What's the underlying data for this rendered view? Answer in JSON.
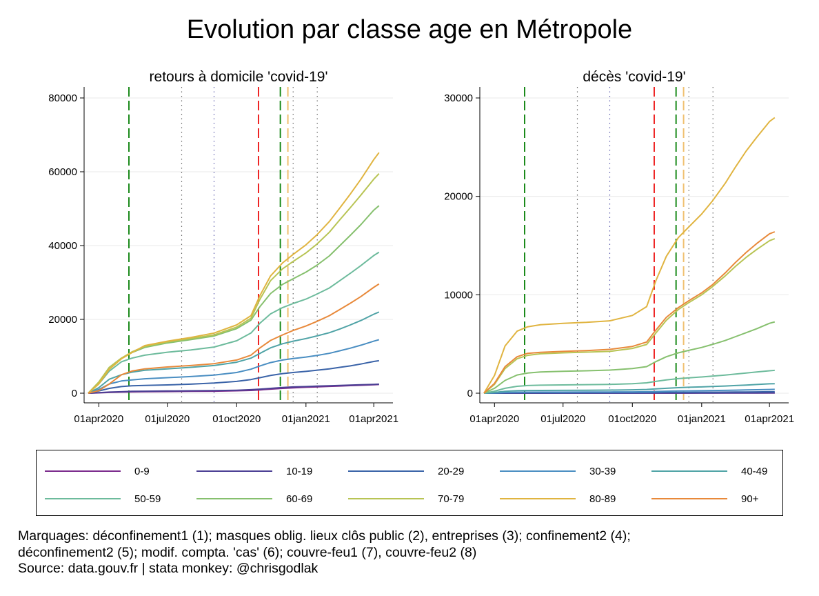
{
  "title": "Evolution par classe age en Métropole",
  "notes": [
    "Marquages: déconfinement1 (1); masques oblig. lieux clôs public (2), entreprises (3); confinement2 (4);",
    "déconfinement2 (5); modif. compta. 'cas' (6); couvre-feu1 (7), couvre-feu2 (8)",
    "Source: data.gouv.fr | stata monkey: @chrisgodlak"
  ],
  "colors": {
    "0-9": "#7b2a8c",
    "10-19": "#4b3f94",
    "20-29": "#3a63a8",
    "30-39": "#4a8ec2",
    "40-49": "#4fa3a6",
    "50-59": "#6dbb9c",
    "60-69": "#86c06e",
    "70-79": "#b8c454",
    "80-89": "#e0b440",
    "90+": "#e8893a"
  },
  "legend": [
    "0-9",
    "10-19",
    "20-29",
    "30-39",
    "40-49",
    "50-59",
    "60-69",
    "70-79",
    "80-89",
    "90+"
  ],
  "chart_data": [
    {
      "type": "line",
      "title": "retours à domicile 'covid-19'",
      "x_ticks": [
        "01apr2020",
        "01jul2020",
        "01oct2020",
        "01jan2021",
        "01apr2021"
      ],
      "y_ticks": [
        0,
        20000,
        40000,
        60000,
        80000
      ],
      "xlim": [
        "2020-03-18",
        "2021-04-10"
      ],
      "ylim": [
        0,
        80000
      ],
      "grid": true,
      "markers": [
        {
          "date": "2020-05-11",
          "color": "#1a8a1a",
          "style": "dashed"
        },
        {
          "date": "2020-07-20",
          "color": "#666666",
          "style": "dotted"
        },
        {
          "date": "2020-09-01",
          "color": "#5555aa",
          "style": "dotted"
        },
        {
          "date": "2020-10-30",
          "color": "#ee2222",
          "style": "dashed"
        },
        {
          "date": "2020-11-28",
          "color": "#1a8a1a",
          "style": "dashed"
        },
        {
          "date": "2020-12-08",
          "color": "#f0c070",
          "style": "dashed"
        },
        {
          "date": "2020-12-15",
          "color": "#666666",
          "style": "dotted"
        },
        {
          "date": "2021-01-16",
          "color": "#666666",
          "style": "dotted"
        }
      ],
      "x": [
        "2020-03-18",
        "2020-04-01",
        "2020-04-15",
        "2020-05-01",
        "2020-05-15",
        "2020-06-01",
        "2020-07-01",
        "2020-08-01",
        "2020-09-01",
        "2020-10-01",
        "2020-10-20",
        "2020-11-01",
        "2020-11-15",
        "2020-12-01",
        "2020-12-15",
        "2021-01-01",
        "2021-01-15",
        "2021-02-01",
        "2021-02-15",
        "2021-03-01",
        "2021-03-15",
        "2021-04-01",
        "2021-04-08"
      ],
      "series": [
        {
          "name": "0-9",
          "values": [
            0,
            100,
            200,
            300,
            350,
            400,
            450,
            500,
            550,
            650,
            750,
            900,
            1100,
            1300,
            1450,
            1600,
            1700,
            1850,
            1950,
            2050,
            2150,
            2300,
            2350
          ]
        },
        {
          "name": "10-19",
          "values": [
            0,
            150,
            300,
            400,
            500,
            550,
            600,
            650,
            700,
            800,
            950,
            1100,
            1300,
            1550,
            1700,
            1800,
            1900,
            2000,
            2100,
            2200,
            2300,
            2400,
            2450
          ]
        },
        {
          "name": "20-29",
          "values": [
            0,
            600,
            1300,
            1800,
            2000,
            2100,
            2250,
            2450,
            2750,
            3200,
            3700,
            4200,
            4800,
            5300,
            5600,
            5900,
            6200,
            6600,
            7000,
            7400,
            7900,
            8600,
            8800
          ]
        },
        {
          "name": "30-39",
          "values": [
            0,
            1000,
            2500,
            3300,
            3600,
            3900,
            4200,
            4500,
            4900,
            5600,
            6500,
            7400,
            8300,
            9000,
            9400,
            9800,
            10200,
            10800,
            11500,
            12200,
            13000,
            14100,
            14500
          ]
        },
        {
          "name": "40-49",
          "values": [
            0,
            1500,
            3800,
            5000,
            5700,
            6200,
            6600,
            7000,
            7500,
            8400,
            9500,
            10800,
            12300,
            13400,
            14100,
            14800,
            15500,
            16400,
            17400,
            18500,
            19700,
            21400,
            22000
          ]
        },
        {
          "name": "50-59",
          "values": [
            0,
            2500,
            6000,
            8500,
            9500,
            10300,
            11100,
            11700,
            12500,
            14200,
            16300,
            19000,
            21500,
            23200,
            24300,
            25500,
            26800,
            28500,
            30500,
            32500,
            34600,
            37300,
            38200
          ]
        },
        {
          "name": "60-69",
          "values": [
            0,
            3000,
            7000,
            9500,
            11000,
            12400,
            13600,
            14500,
            15500,
            17500,
            19800,
            23500,
            27000,
            29500,
            31000,
            32800,
            34600,
            37200,
            40000,
            42800,
            45700,
            49600,
            50800
          ]
        },
        {
          "name": "70-79",
          "values": [
            0,
            3000,
            7000,
            9500,
            11200,
            12700,
            13900,
            14800,
            15800,
            17900,
            20300,
            25500,
            30500,
            33700,
            35700,
            38000,
            40300,
            43600,
            47000,
            50300,
            53700,
            58000,
            59500
          ]
        },
        {
          "name": "80-89",
          "values": [
            0,
            2500,
            6500,
            9300,
            11000,
            12900,
            14100,
            15100,
            16300,
            18500,
            21000,
            26500,
            31800,
            35300,
            37600,
            40200,
            42800,
            46500,
            50200,
            54000,
            58000,
            63300,
            65200
          ]
        },
        {
          "name": "90+",
          "values": [
            0,
            700,
            2500,
            5000,
            6000,
            6600,
            7100,
            7500,
            8000,
            9000,
            10300,
            12300,
            14300,
            15800,
            17000,
            18200,
            19400,
            21000,
            22700,
            24400,
            26200,
            28700,
            29600
          ]
        }
      ]
    },
    {
      "type": "line",
      "title": "décès 'covid-19'",
      "x_ticks": [
        "01apr2020",
        "01jul2020",
        "01oct2020",
        "01jan2021",
        "01apr2021"
      ],
      "y_ticks": [
        0,
        10000,
        20000,
        30000
      ],
      "xlim": [
        "2020-03-18",
        "2021-04-10"
      ],
      "ylim": [
        0,
        30000
      ],
      "grid": true,
      "markers": [
        {
          "date": "2020-05-11",
          "color": "#1a8a1a",
          "style": "dashed"
        },
        {
          "date": "2020-07-20",
          "color": "#666666",
          "style": "dotted"
        },
        {
          "date": "2020-09-01",
          "color": "#5555aa",
          "style": "dotted"
        },
        {
          "date": "2020-10-30",
          "color": "#ee2222",
          "style": "dashed"
        },
        {
          "date": "2020-11-28",
          "color": "#1a8a1a",
          "style": "dashed"
        },
        {
          "date": "2020-12-08",
          "color": "#f0c070",
          "style": "dashed"
        },
        {
          "date": "2020-12-15",
          "color": "#666666",
          "style": "dotted"
        },
        {
          "date": "2021-01-16",
          "color": "#666666",
          "style": "dotted"
        }
      ],
      "x": [
        "2020-03-18",
        "2020-04-01",
        "2020-04-15",
        "2020-05-01",
        "2020-05-15",
        "2020-06-01",
        "2020-07-01",
        "2020-08-01",
        "2020-09-01",
        "2020-10-01",
        "2020-10-20",
        "2020-11-01",
        "2020-11-15",
        "2020-12-01",
        "2020-12-15",
        "2021-01-01",
        "2021-01-15",
        "2021-02-01",
        "2021-02-15",
        "2021-03-01",
        "2021-03-15",
        "2021-04-01",
        "2021-04-08"
      ],
      "series": [
        {
          "name": "0-9",
          "values": [
            0,
            1,
            2,
            3,
            3,
            3,
            4,
            4,
            4,
            5,
            6,
            7,
            8,
            9,
            10,
            11,
            12,
            13,
            14,
            15,
            16,
            17,
            18
          ]
        },
        {
          "name": "10-19",
          "values": [
            0,
            2,
            4,
            6,
            7,
            7,
            8,
            8,
            9,
            10,
            11,
            13,
            15,
            17,
            19,
            21,
            23,
            25,
            27,
            29,
            31,
            33,
            34
          ]
        },
        {
          "name": "20-29",
          "values": [
            0,
            10,
            25,
            35,
            40,
            42,
            44,
            46,
            48,
            52,
            58,
            66,
            75,
            84,
            90,
            96,
            102,
            110,
            118,
            126,
            134,
            145,
            148
          ]
        },
        {
          "name": "30-39",
          "values": [
            0,
            30,
            70,
            95,
            105,
            110,
            115,
            120,
            125,
            135,
            150,
            175,
            200,
            225,
            240,
            255,
            270,
            290,
            310,
            330,
            350,
            380,
            390
          ]
        },
        {
          "name": "40-49",
          "values": [
            0,
            80,
            190,
            250,
            270,
            280,
            290,
            300,
            315,
            340,
            380,
            440,
            500,
            560,
            600,
            640,
            680,
            730,
            780,
            830,
            880,
            950,
            970
          ]
        },
        {
          "name": "50-59",
          "values": [
            0,
            200,
            500,
            700,
            780,
            810,
            840,
            870,
            900,
            960,
            1050,
            1200,
            1350,
            1480,
            1560,
            1650,
            1730,
            1840,
            1950,
            2050,
            2150,
            2280,
            2320
          ]
        },
        {
          "name": "60-69",
          "values": [
            0,
            500,
            1300,
            1850,
            2050,
            2150,
            2220,
            2280,
            2350,
            2500,
            2700,
            3200,
            3700,
            4100,
            4350,
            4650,
            4950,
            5350,
            5750,
            6150,
            6550,
            7100,
            7250
          ]
        },
        {
          "name": "70-79",
          "values": [
            0,
            900,
            2500,
            3500,
            3850,
            4000,
            4100,
            4170,
            4250,
            4550,
            4950,
            6100,
            7400,
            8500,
            9200,
            10000,
            10800,
            11900,
            12900,
            13800,
            14600,
            15500,
            15700
          ]
        },
        {
          "name": "80-89",
          "values": [
            0,
            1800,
            4800,
            6300,
            6750,
            6950,
            7100,
            7200,
            7350,
            7900,
            8800,
            11400,
            13900,
            15800,
            16900,
            18200,
            19500,
            21300,
            23000,
            24600,
            26000,
            27600,
            28000
          ]
        },
        {
          "name": "90+",
          "values": [
            0,
            1000,
            2700,
            3700,
            4050,
            4150,
            4250,
            4330,
            4450,
            4750,
            5200,
            6400,
            7700,
            8700,
            9400,
            10200,
            11000,
            12200,
            13300,
            14300,
            15200,
            16200,
            16400
          ]
        }
      ]
    }
  ]
}
